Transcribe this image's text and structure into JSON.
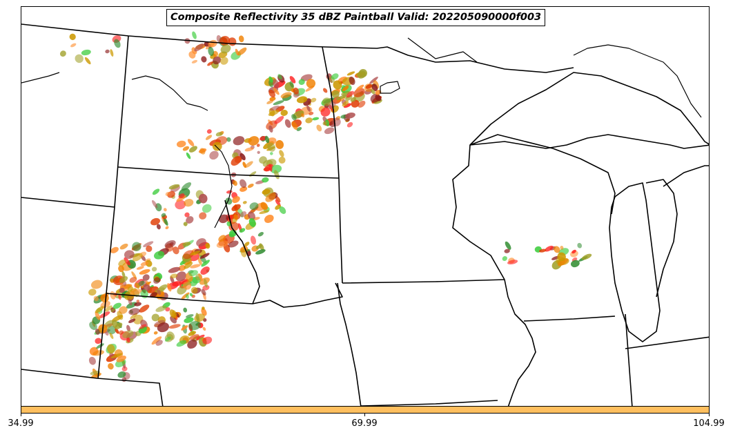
{
  "title": "Composite Reflectivity 35 dBZ Paintball Valid: 202205090000f003",
  "colorbar": {
    "ticks": [
      "34.99",
      "69.99",
      "104.99"
    ],
    "color": "#ffbf5f"
  },
  "palette": [
    "#ff1f1f",
    "#e03a00",
    "#f08000",
    "#ff8c2a",
    "#a0a028",
    "#8b1a1a",
    "#2e8b2e",
    "#3ccc3c",
    "#b05050",
    "#cc9900"
  ]
}
